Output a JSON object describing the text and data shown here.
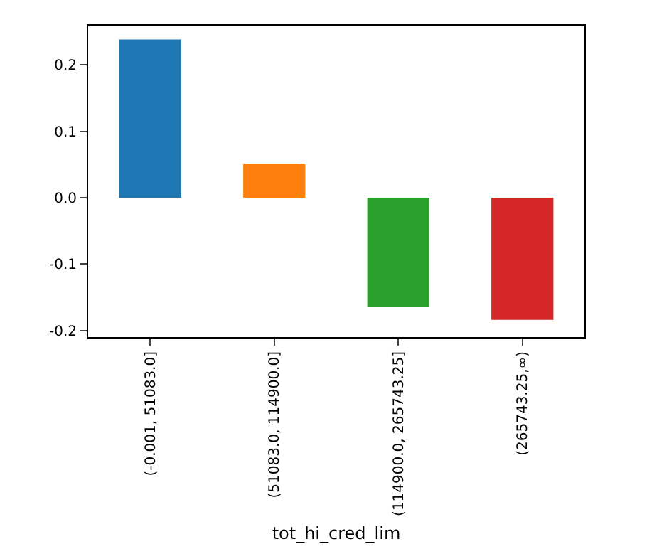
{
  "chart_data": {
    "type": "bar",
    "xlabel": "tot_hi_cred_lim",
    "categories": [
      "(-0.001, 51083.0]",
      "(51083.0, 114900.0]",
      "(114900.0, 265743.25]",
      "(265743.25,∞)"
    ],
    "values": [
      0.238,
      0.051,
      -0.165,
      -0.184
    ],
    "colors": [
      "#1f77b4",
      "#ff7f0e",
      "#2ca02c",
      "#d62728"
    ],
    "ylim": [
      -0.21,
      0.259
    ],
    "yticks": [
      -0.2,
      -0.1,
      {
        "value": 0,
        "label": "0.0"
      },
      0.1,
      0.2
    ],
    "grid": false
  }
}
